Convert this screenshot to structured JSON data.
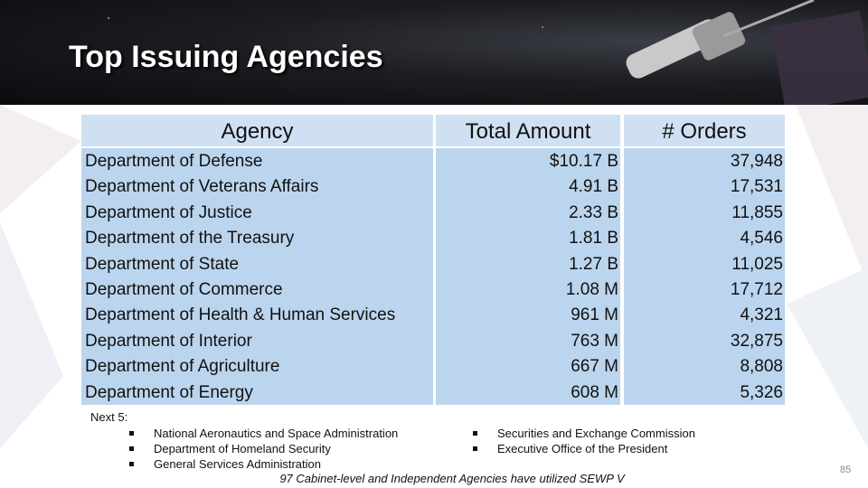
{
  "header": {
    "title": "Top Issuing Agencies"
  },
  "table": {
    "headers": [
      "Agency",
      "Total Amount",
      "# Orders"
    ],
    "rows": [
      [
        "Department of Defense",
        "$10.17 B",
        "37,948"
      ],
      [
        "Department of Veterans Affairs",
        "4.91 B",
        "17,531"
      ],
      [
        "Department of Justice",
        "2.33 B",
        "11,855"
      ],
      [
        "Department of the Treasury",
        "1.81 B",
        "4,546"
      ],
      [
        "Department of State",
        "1.27 B",
        "11,025"
      ],
      [
        "Department of Commerce",
        "1.08 M",
        "17,712"
      ],
      [
        "Department of Health & Human Services",
        "961 M",
        "4,321"
      ],
      [
        "Department of Interior",
        "763 M",
        "32,875"
      ],
      [
        "Department of Agriculture",
        "667 M",
        "8,808"
      ],
      [
        "Department of Energy",
        "608 M",
        "5,326"
      ]
    ]
  },
  "next": {
    "label": "Next 5:",
    "left": [
      "National Aeronautics and Space Administration",
      "Department of Homeland Security",
      "General Services Administration"
    ],
    "right": [
      "Securities and Exchange Commission",
      "Executive Office of the President"
    ]
  },
  "footnote": "97 Cabinet-level and Independent Agencies have utilized SEWP V",
  "page_number": "85"
}
